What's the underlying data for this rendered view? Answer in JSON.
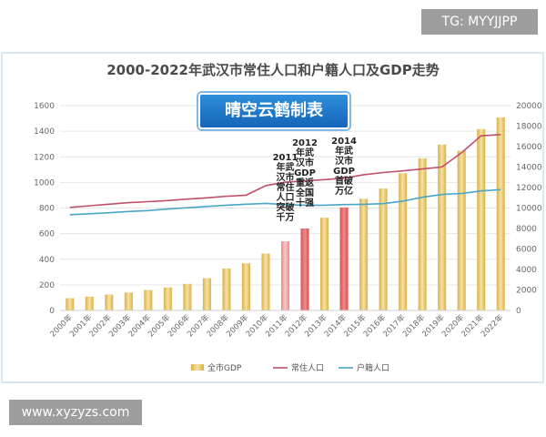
{
  "watermark_top": "TG: MYYJJPP",
  "watermark_bottom": "www.xyzyzs.com",
  "banner": "晴空云鹤制表",
  "chart_data": {
    "type": "bar",
    "title": "2000-2022年武汉市常住人口和户籍人口及GDP走势",
    "categories": [
      "2000年",
      "2001年",
      "2002年",
      "2003年",
      "2004年",
      "2005年",
      "2006年",
      "2007年",
      "2008年",
      "2009年",
      "2010年",
      "2011年",
      "2012年",
      "2013年",
      "2014年",
      "2015年",
      "2016年",
      "2017年",
      "2018年",
      "2019年",
      "2020年",
      "2021年",
      "2022年"
    ],
    "y_left_ticks": [
      "0",
      "200",
      "400",
      "600",
      "800",
      "1000",
      "1200",
      "1400",
      "1600"
    ],
    "y_right_ticks": [
      "0",
      "2000",
      "4000",
      "6000",
      "8000",
      "10000",
      "12000",
      "14000",
      "16000",
      "18000",
      "20000"
    ],
    "ylim_left": [
      0,
      1600
    ],
    "ylim_right": [
      0,
      20000
    ],
    "series": [
      {
        "name": "全市GDP",
        "type": "bar",
        "axis": "right",
        "color": "#e8c76a",
        "values": [
          1200,
          1350,
          1550,
          1750,
          2000,
          2250,
          2600,
          3150,
          4100,
          4600,
          5550,
          6750,
          8000,
          9050,
          10050,
          10900,
          11900,
          13400,
          14850,
          16200,
          15600,
          17700,
          18850
        ]
      },
      {
        "name": "常住人口",
        "type": "line",
        "axis": "left",
        "color": "#c0506b",
        "values": [
          805,
          818,
          830,
          842,
          850,
          858,
          870,
          880,
          892,
          900,
          975,
          1002,
          1012,
          1022,
          1033,
          1060,
          1077,
          1090,
          1105,
          1121,
          1232,
          1364,
          1374
        ]
      },
      {
        "name": "户籍人口",
        "type": "line",
        "axis": "left",
        "color": "#4aa6c8",
        "values": [
          748,
          755,
          763,
          773,
          780,
          792,
          802,
          812,
          822,
          830,
          836,
          827,
          822,
          822,
          827,
          829,
          834,
          854,
          884,
          906,
          914,
          934,
          944
        ]
      }
    ],
    "highlight_bars": {
      "11": "#f2a3a0",
      "12": "#e8686a",
      "14": "#e8686a"
    },
    "annotations": [
      {
        "index": 11,
        "text": "2011\n年武\n汉市\n常住\n人口\n突破\n千万"
      },
      {
        "index": 12,
        "text": "2012\n年武\n汉市\nGDP\n重返\n全国\n十强"
      },
      {
        "index": 14,
        "text": "2014\n年武\n汉市\nGDP\n首破\n万亿"
      }
    ],
    "legend_position": "bottom",
    "grid": true
  }
}
